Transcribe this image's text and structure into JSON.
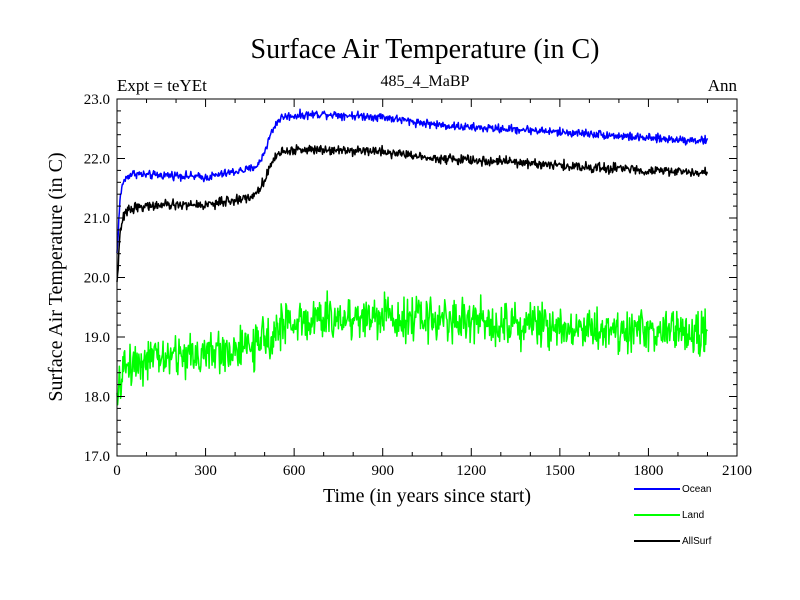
{
  "header": {
    "title": "Surface Air Temperature (in C)",
    "experiment": "Expt = teYEt",
    "subtitle": "485_4_MaBP",
    "season": "Ann"
  },
  "chart_data": {
    "type": "line",
    "title": "Surface Air Temperature (in C)",
    "xlabel": "Time (in years since start)",
    "ylabel": "Surface Air Temperature (in C)",
    "xlim": [
      0,
      2100
    ],
    "ylim": [
      17.0,
      23.0
    ],
    "xticks": [
      "0",
      "300",
      "600",
      "900",
      "1200",
      "1500",
      "1800",
      "2100"
    ],
    "yticks": [
      "17.0",
      "18.0",
      "19.0",
      "20.0",
      "21.0",
      "22.0",
      "23.0"
    ],
    "grid": false,
    "legend_position": "bottom-right",
    "series": [
      {
        "name": "Ocean",
        "color": "#0000ff",
        "noise": 0.035,
        "x": [
          0,
          10,
          20,
          40,
          60,
          100,
          200,
          300,
          400,
          450,
          480,
          500,
          520,
          540,
          560,
          600,
          700,
          800,
          900,
          1000,
          1100,
          1200,
          1300,
          1400,
          1500,
          1600,
          1700,
          1800,
          1900,
          2000
        ],
        "values": [
          20.4,
          21.3,
          21.6,
          21.72,
          21.75,
          21.72,
          21.72,
          21.68,
          21.78,
          21.82,
          21.9,
          22.12,
          22.4,
          22.6,
          22.7,
          22.72,
          22.75,
          22.72,
          22.7,
          22.62,
          22.56,
          22.52,
          22.5,
          22.48,
          22.44,
          22.42,
          22.38,
          22.34,
          22.32,
          22.3
        ]
      },
      {
        "name": "Land",
        "color": "#00ff00",
        "noise": 0.18,
        "x": [
          0,
          10,
          20,
          40,
          100,
          200,
          300,
          400,
          480,
          520,
          560,
          600,
          700,
          800,
          900,
          1000,
          1100,
          1200,
          1300,
          1400,
          1500,
          1600,
          1700,
          1800,
          1900,
          2000
        ],
        "values": [
          17.8,
          18.2,
          18.45,
          18.55,
          18.62,
          18.68,
          18.72,
          18.78,
          18.85,
          19.05,
          19.2,
          19.25,
          19.3,
          19.33,
          19.35,
          19.32,
          19.3,
          19.27,
          19.25,
          19.22,
          19.18,
          19.15,
          19.12,
          19.1,
          19.08,
          19.05
        ]
      },
      {
        "name": "AllSurf",
        "color": "#000000",
        "noise": 0.04,
        "x": [
          0,
          10,
          20,
          40,
          60,
          100,
          200,
          300,
          400,
          450,
          480,
          500,
          520,
          540,
          560,
          600,
          700,
          800,
          900,
          1000,
          1100,
          1200,
          1300,
          1400,
          1500,
          1600,
          1700,
          1800,
          1900,
          2000
        ],
        "values": [
          19.9,
          20.7,
          21.0,
          21.15,
          21.18,
          21.2,
          21.22,
          21.22,
          21.3,
          21.35,
          21.45,
          21.65,
          21.9,
          22.05,
          22.12,
          22.14,
          22.16,
          22.14,
          22.12,
          22.05,
          22.0,
          21.97,
          21.95,
          21.92,
          21.88,
          21.85,
          21.83,
          21.8,
          21.78,
          21.76
        ]
      }
    ]
  }
}
